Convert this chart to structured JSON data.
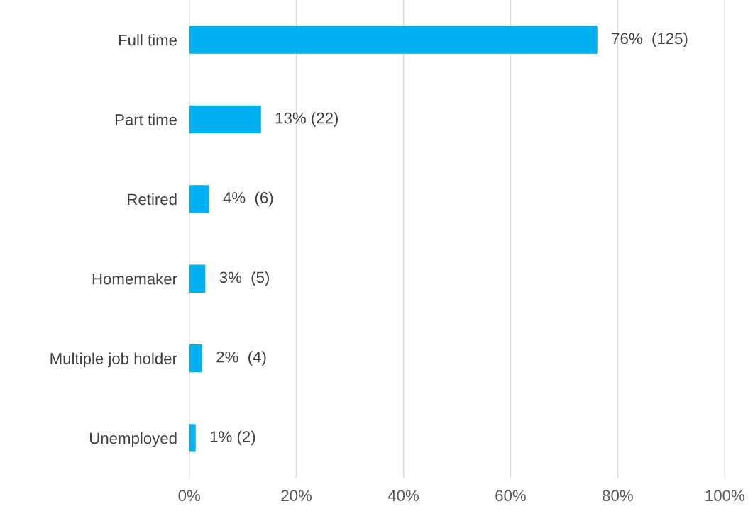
{
  "chart_data": {
    "type": "bar",
    "orientation": "horizontal",
    "categories": [
      "Full time",
      "Part time",
      "Retired",
      "Homemaker",
      "Multiple job holder",
      "Unemployed"
    ],
    "values": [
      76.2,
      13.4,
      3.7,
      3.0,
      2.4,
      1.2
    ],
    "value_labels": [
      "76%  (125)",
      "13% (22)",
      "4%  (6)",
      "3%  (5)",
      "2%  (4)",
      "1% (2)"
    ],
    "color": "#00b0f0",
    "xlim": [
      0,
      100
    ],
    "xticks": [
      {
        "value": 0,
        "label": "0%"
      },
      {
        "value": 20,
        "label": "20%"
      },
      {
        "value": 40,
        "label": "40%"
      },
      {
        "value": 60,
        "label": "60%"
      },
      {
        "value": 80,
        "label": "80%"
      },
      {
        "value": 100,
        "label": "100%"
      }
    ],
    "grid": "x",
    "legend": false
  }
}
